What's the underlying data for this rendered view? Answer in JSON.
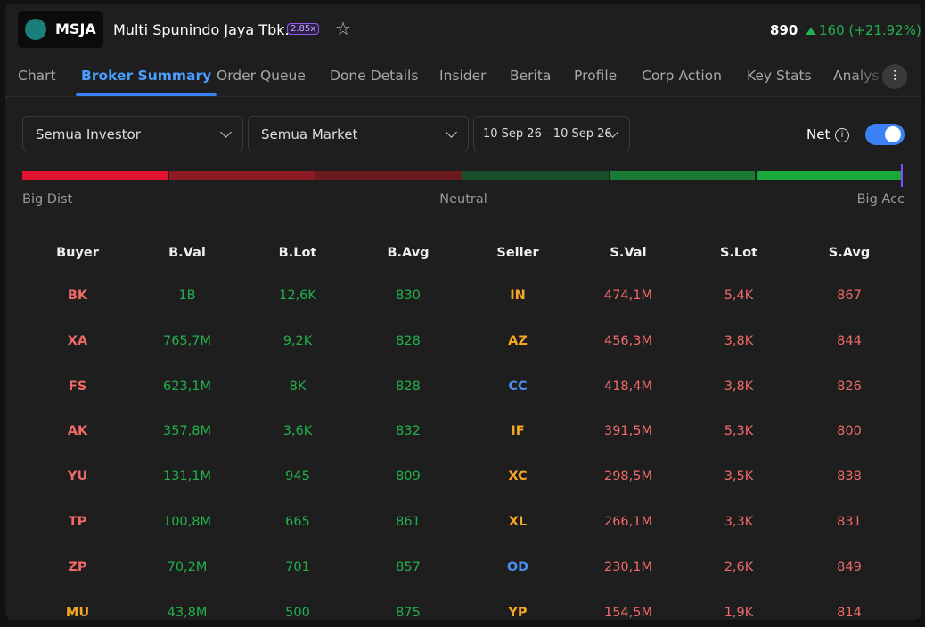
{
  "header": {
    "ticker": "MSJA",
    "name": "Multi Spunindo Jaya Tbk.",
    "badge": "2.85x",
    "price": "890",
    "change": "160 (+21.92%)"
  },
  "tabs": [
    "Chart",
    "Broker Summary",
    "Order Queue",
    "Done Details",
    "Insider",
    "Berita",
    "Profile",
    "Corp Action",
    "Key Stats",
    "Analys"
  ],
  "active_tab": 1,
  "filters": {
    "investor": "Semua Investor",
    "market": "Semua Market",
    "date": "10 Sep 26 - 10 Sep 26",
    "net": "Net"
  },
  "gauge": {
    "left": "Big Dist",
    "center": "Neutral",
    "right": "Big Acc"
  },
  "table": {
    "columns": [
      "Buyer",
      "B.Val",
      "B.Lot",
      "B.Avg",
      "Seller",
      "S.Val",
      "S.Lot",
      "S.Avg"
    ],
    "rows": [
      {
        "buyer": "BK",
        "buyer_color": "#f06a6a",
        "bval": "1B",
        "blot": "12,6K",
        "bavg": "830",
        "seller": "IN",
        "seller_color": "#f5a623",
        "sval": "474,1M",
        "slot": "5,4K",
        "savg": "867"
      },
      {
        "buyer": "XA",
        "buyer_color": "#f06a6a",
        "bval": "765,7M",
        "blot": "9,2K",
        "bavg": "828",
        "seller": "AZ",
        "seller_color": "#f5a623",
        "sval": "456,3M",
        "slot": "3,8K",
        "savg": "844"
      },
      {
        "buyer": "FS",
        "buyer_color": "#f06a6a",
        "bval": "623,1M",
        "blot": "8K",
        "bavg": "828",
        "seller": "CC",
        "seller_color": "#4a8ef0",
        "sval": "418,4M",
        "slot": "3,8K",
        "savg": "826"
      },
      {
        "buyer": "AK",
        "buyer_color": "#f06a6a",
        "bval": "357,8M",
        "blot": "3,6K",
        "bavg": "832",
        "seller": "IF",
        "seller_color": "#f5a623",
        "sval": "391,5M",
        "slot": "5,3K",
        "savg": "800"
      },
      {
        "buyer": "YU",
        "buyer_color": "#f06a6a",
        "bval": "131,1M",
        "blot": "945",
        "bavg": "809",
        "seller": "XC",
        "seller_color": "#f5a623",
        "sval": "298,5M",
        "slot": "3,5K",
        "savg": "838"
      },
      {
        "buyer": "TP",
        "buyer_color": "#f06a6a",
        "bval": "100,8M",
        "blot": "665",
        "bavg": "861",
        "seller": "XL",
        "seller_color": "#f5a623",
        "sval": "266,1M",
        "slot": "3,3K",
        "savg": "831"
      },
      {
        "buyer": "ZP",
        "buyer_color": "#f06a6a",
        "bval": "70,2M",
        "blot": "701",
        "bavg": "857",
        "seller": "OD",
        "seller_color": "#4a8ef0",
        "sval": "230,1M",
        "slot": "2,6K",
        "savg": "849"
      },
      {
        "buyer": "MU",
        "buyer_color": "#f5a623",
        "bval": "43,8M",
        "blot": "500",
        "bavg": "875",
        "seller": "YP",
        "seller_color": "#f5a623",
        "sval": "154,5M",
        "slot": "1,9K",
        "savg": "814"
      }
    ]
  }
}
